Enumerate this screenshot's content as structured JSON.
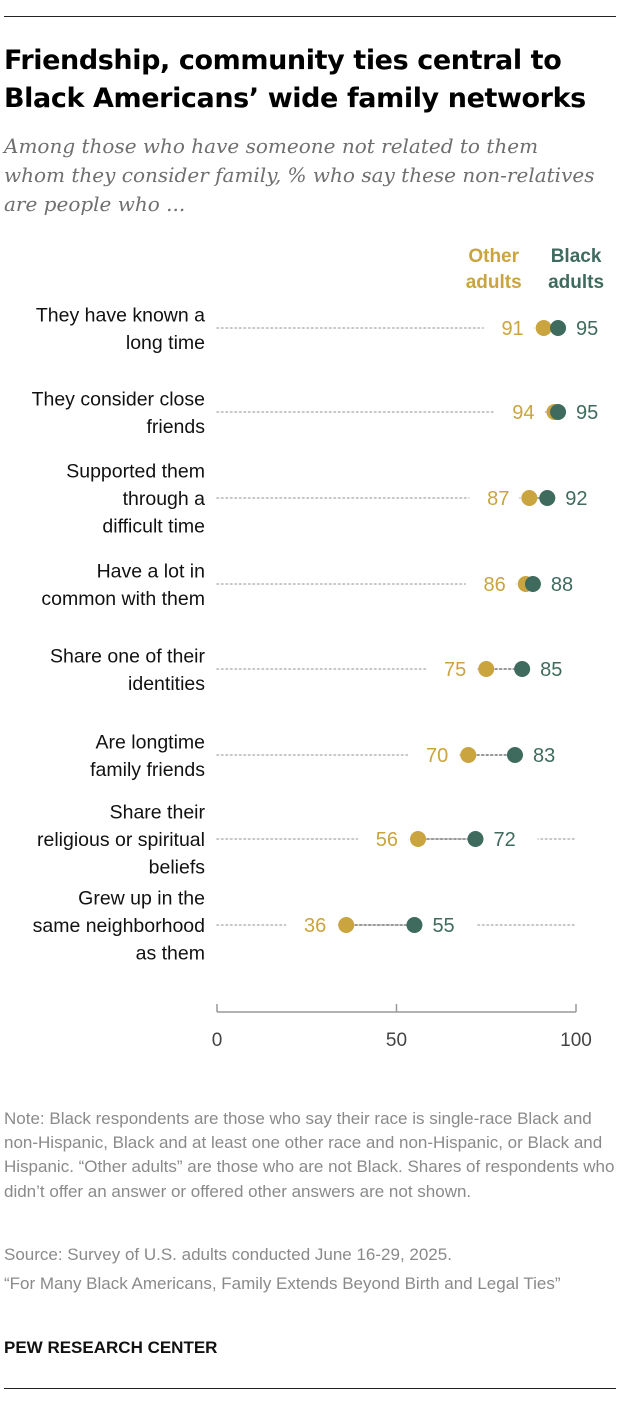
{
  "title": "Friendship, community ties central to Black Americans’ wide family networks",
  "subtitle": "Among those who have someone not related to them whom they consider family, % who say these non-relatives are people who ...",
  "legend": {
    "other_label": "Other adults",
    "black_label": "Black adults"
  },
  "colors": {
    "other": "#c9a43f",
    "black": "#3f6b5e",
    "dots": "#b5b5b5",
    "axis": "#999999"
  },
  "chart_data": {
    "type": "dot",
    "categories": [
      "They have known a long time",
      "They consider close friends",
      "Supported them through a difficult time",
      "Have a lot in common with them",
      "Share one of their identities",
      "Are longtime family friends",
      "Share their religious or spiritual beliefs",
      "Grew up in the same neighborhood as them"
    ],
    "series": [
      {
        "name": "Other adults",
        "values": [
          91,
          94,
          87,
          86,
          75,
          70,
          56,
          36
        ]
      },
      {
        "name": "Black adults",
        "values": [
          95,
          95,
          92,
          88,
          85,
          83,
          72,
          55
        ]
      }
    ],
    "xlim": [
      0,
      100
    ],
    "xticks": [
      0,
      50,
      100
    ]
  },
  "note": "Note: Black respondents are those who say their race is single-race Black and non-Hispanic, Black and at least one other race and non-Hispanic, or Black and Hispanic. “Other adults” are those who are not Black. Shares of respondents who didn’t offer an answer or offered other answers are not shown.",
  "source": "Source: Survey of U.S. adults conducted June 16-29, 2025.",
  "report": "“For Many Black Americans, Family Extends Beyond Birth and Legal Ties”",
  "org": "PEW RESEARCH CENTER"
}
